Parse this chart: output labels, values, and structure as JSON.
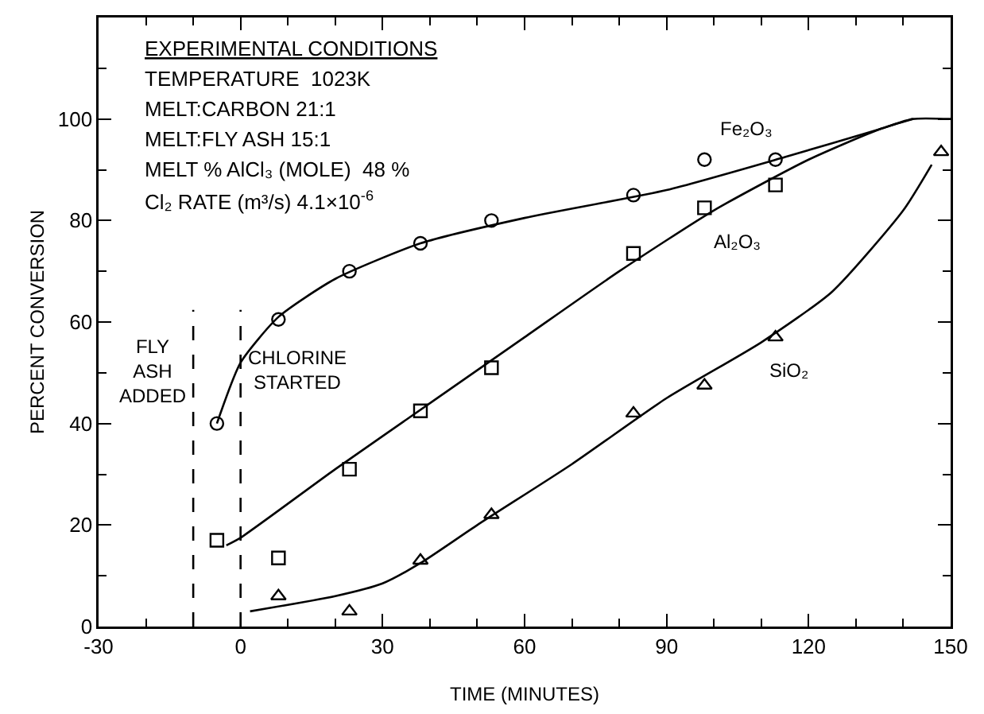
{
  "chart_data": {
    "type": "scatter",
    "xlabel": "TIME (MINUTES)",
    "ylabel": "PERCENT CONVERSION",
    "xlim": [
      -30,
      150
    ],
    "xticks": [
      -30,
      0,
      30,
      60,
      90,
      120,
      150
    ],
    "ylim": [
      0,
      120
    ],
    "yticks": [
      0,
      20,
      40,
      60,
      80,
      100
    ],
    "grid": false,
    "legend": false,
    "annotations": [
      "EXPERIMENTAL CONDITIONS",
      "TEMPERATURE  1023K",
      "MELT:CARBON 21:1",
      "MELT:FLY ASH 15:1",
      "MELT % AlCl₃ (MOLE)  48 %",
      "Cl₂ RATE (m³/s) 4.1×10$^{-6}$"
    ],
    "ref_lines": [
      {
        "axis": "x",
        "value": -10,
        "label": "FLY\nASH\nADDED",
        "color": "#000000",
        "line_style": "dashed"
      },
      {
        "axis": "x",
        "value": 0,
        "label": "CHLORINE\nSTARTED",
        "color": "#000000",
        "line_style": "dashed"
      }
    ],
    "series": [
      {
        "name": "Fe₂O₃",
        "type": "scatter",
        "marker": "circle",
        "color": "#000000",
        "x": [
          -5,
          8,
          23,
          38,
          53,
          83,
          98,
          113
        ],
        "values": [
          40,
          60.5,
          70,
          75.5,
          80,
          85,
          92,
          92
        ]
      },
      {
        "name": "Al₂O₃",
        "type": "scatter",
        "marker": "square",
        "color": "#000000",
        "x": [
          -5,
          8,
          23,
          38,
          53,
          83,
          98,
          113
        ],
        "values": [
          17,
          13.5,
          31,
          42.5,
          51,
          73.5,
          82.5,
          87
        ]
      },
      {
        "name": "SiO₂",
        "type": "scatter",
        "marker": "triangle",
        "color": "#000000",
        "x": [
          8,
          23,
          38,
          53,
          83,
          98,
          113,
          148
        ],
        "values": [
          6,
          3,
          13,
          22,
          42,
          47.5,
          57,
          93.5
        ]
      },
      {
        "type": "line",
        "marker": "none",
        "line_style": "solid",
        "color": "#000000",
        "x": [
          -5,
          0,
          8,
          20,
          38,
          60,
          90,
          115,
          135,
          142,
          150
        ],
        "values": [
          40,
          52,
          61,
          68.5,
          75.5,
          80.5,
          86,
          92.5,
          98,
          100,
          100
        ]
      },
      {
        "type": "line",
        "marker": "none",
        "line_style": "solid",
        "color": "#000000",
        "x": [
          -3,
          0,
          20,
          40,
          60,
          80,
          100,
          120,
          135,
          142
        ],
        "values": [
          16,
          17.5,
          31,
          44,
          57,
          70,
          82,
          92,
          98,
          100
        ]
      },
      {
        "type": "line",
        "marker": "none",
        "line_style": "solid",
        "color": "#000000",
        "x": [
          2,
          20,
          30,
          38,
          50,
          70,
          90,
          110,
          125,
          140,
          146
        ],
        "values": [
          3,
          6,
          8.5,
          12.5,
          20,
          32,
          45,
          56,
          66,
          82,
          91
        ]
      }
    ]
  }
}
